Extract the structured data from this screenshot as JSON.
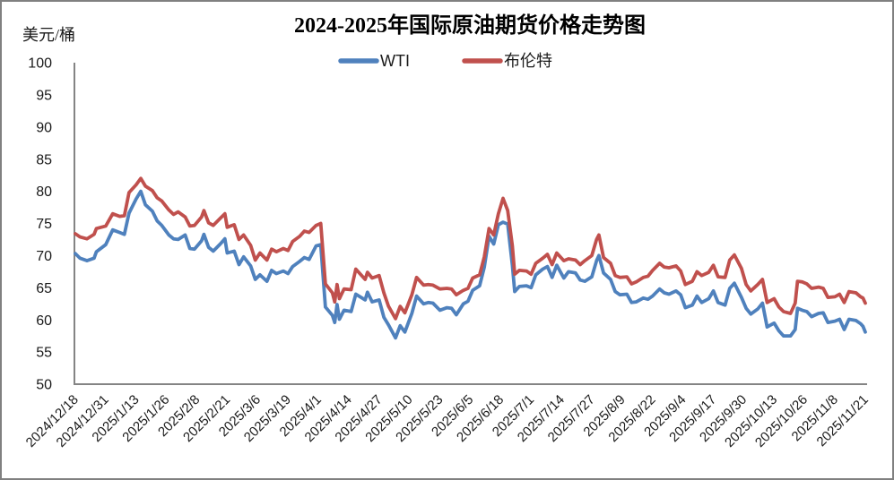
{
  "window": {
    "background": "#ffffff",
    "border_color": "#808080"
  },
  "chart_data": {
    "type": "line",
    "title": "2024-2025年国际原油期货价格走势图",
    "unit_label": "美元/桶",
    "xlabel": "",
    "ylabel": "美元/桶",
    "ylim": [
      50,
      100
    ],
    "y_ticks": [
      100,
      95,
      90,
      85,
      80,
      75,
      70,
      65,
      60,
      55,
      50
    ],
    "grid": false,
    "legend_position": "top-center",
    "axis_color": "#848484",
    "x_range": [
      "2024/12/18",
      "2025/11/21"
    ],
    "x_tick_labels": [
      "2024/12/18",
      "2024/12/31",
      "2025/1/13",
      "2025/1/26",
      "2025/2/8",
      "2025/2/21",
      "2025/3/6",
      "2025/3/19",
      "2025/4/1",
      "2025/4/14",
      "2025/4/27",
      "2025/5/10",
      "2025/5/23",
      "2025/6/5",
      "2025/6/18",
      "2025/7/1",
      "2025/7/14",
      "2025/7/27",
      "2025/8/9",
      "2025/8/22",
      "2025/9/4",
      "2025/9/17",
      "2025/9/30",
      "2025/10/13",
      "2025/10/26",
      "2025/11/8",
      "2025/11/21"
    ],
    "dates": [
      "2024/12/18",
      "2024/12/20",
      "2024/12/23",
      "2024/12/26",
      "2024/12/27",
      "2024/12/31",
      "2025/1/3",
      "2025/1/6",
      "2025/1/8",
      "2025/1/10",
      "2025/1/13",
      "2025/1/15",
      "2025/1/17",
      "2025/1/20",
      "2025/1/22",
      "2025/1/24",
      "2025/1/27",
      "2025/1/29",
      "2025/1/31",
      "2025/2/3",
      "2025/2/5",
      "2025/2/7",
      "2025/2/10",
      "2025/2/11",
      "2025/2/13",
      "2025/2/15",
      "2025/2/18",
      "2025/2/20",
      "2025/2/21",
      "2025/2/24",
      "2025/2/26",
      "2025/2/28",
      "2025/3/3",
      "2025/3/5",
      "2025/3/7",
      "2025/3/10",
      "2025/3/12",
      "2025/3/14",
      "2025/3/17",
      "2025/3/19",
      "2025/3/21",
      "2025/3/24",
      "2025/3/26",
      "2025/3/28",
      "2025/3/31",
      "2025/4/2",
      "2025/4/4",
      "2025/4/7",
      "2025/4/8",
      "2025/4/9",
      "2025/4/10",
      "2025/4/12",
      "2025/4/15",
      "2025/4/17",
      "2025/4/21",
      "2025/4/22",
      "2025/4/24",
      "2025/4/27",
      "2025/4/29",
      "2025/5/1",
      "2025/5/4",
      "2025/5/6",
      "2025/5/8",
      "2025/5/11",
      "2025/5/13",
      "2025/5/16",
      "2025/5/18",
      "2025/5/20",
      "2025/5/23",
      "2025/5/26",
      "2025/5/28",
      "2025/5/30",
      "2025/6/2",
      "2025/6/4",
      "2025/6/6",
      "2025/6/9",
      "2025/6/11",
      "2025/6/13",
      "2025/6/15",
      "2025/6/17",
      "2025/6/19",
      "2025/6/21",
      "2025/6/23",
      "2025/6/24",
      "2025/6/26",
      "2025/6/29",
      "2025/7/1",
      "2025/7/3",
      "2025/7/6",
      "2025/7/8",
      "2025/7/10",
      "2025/7/12",
      "2025/7/15",
      "2025/7/17",
      "2025/7/20",
      "2025/7/22",
      "2025/7/24",
      "2025/7/27",
      "2025/7/29",
      "2025/7/30",
      "2025/8/1",
      "2025/8/4",
      "2025/8/6",
      "2025/8/8",
      "2025/8/11",
      "2025/8/13",
      "2025/8/15",
      "2025/8/18",
      "2025/8/20",
      "2025/8/22",
      "2025/8/25",
      "2025/8/27",
      "2025/8/29",
      "2025/9/1",
      "2025/9/3",
      "2025/9/5",
      "2025/9/8",
      "2025/9/10",
      "2025/9/12",
      "2025/9/15",
      "2025/9/17",
      "2025/9/19",
      "2025/9/22",
      "2025/9/24",
      "2025/9/26",
      "2025/9/29",
      "2025/10/1",
      "2025/10/3",
      "2025/10/6",
      "2025/10/8",
      "2025/10/10",
      "2025/10/13",
      "2025/10/15",
      "2025/10/17",
      "2025/10/20",
      "2025/10/22",
      "2025/10/23",
      "2025/10/25",
      "2025/10/27",
      "2025/10/29",
      "2025/11/1",
      "2025/11/3",
      "2025/11/5",
      "2025/11/8",
      "2025/11/10",
      "2025/11/12",
      "2025/11/14",
      "2025/11/17",
      "2025/11/19",
      "2025/11/20",
      "2025/11/21"
    ],
    "series": [
      {
        "name": "WTI",
        "color": "#4F81BD",
        "values": [
          70.3,
          69.6,
          69.2,
          69.6,
          70.6,
          71.7,
          74.0,
          73.6,
          73.3,
          76.6,
          78.8,
          80.0,
          77.9,
          76.9,
          75.4,
          74.7,
          73.2,
          72.6,
          72.5,
          73.2,
          71.1,
          71.0,
          72.3,
          73.3,
          71.3,
          70.7,
          71.8,
          72.6,
          70.4,
          70.7,
          68.6,
          69.8,
          68.4,
          66.3,
          67.0,
          66.0,
          67.7,
          67.2,
          67.6,
          67.2,
          68.3,
          69.1,
          69.7,
          69.4,
          71.5,
          71.7,
          62.0,
          60.7,
          59.6,
          62.4,
          60.1,
          61.5,
          61.3,
          64.0,
          63.1,
          64.3,
          62.8,
          63.1,
          60.4,
          59.2,
          57.2,
          59.1,
          58.1,
          61.0,
          63.7,
          62.5,
          62.7,
          62.6,
          61.5,
          61.9,
          61.8,
          60.8,
          62.5,
          62.9,
          64.6,
          65.3,
          68.2,
          73.0,
          71.8,
          74.8,
          75.2,
          74.9,
          68.5,
          64.4,
          65.2,
          65.3,
          65.0,
          67.0,
          67.9,
          68.3,
          66.6,
          68.5,
          66.5,
          67.5,
          67.3,
          66.2,
          66.0,
          66.7,
          69.2,
          70.0,
          67.3,
          66.3,
          64.4,
          63.9,
          64.0,
          62.7,
          62.8,
          63.4,
          63.2,
          63.7,
          64.8,
          64.2,
          64.0,
          64.5,
          63.9,
          61.9,
          62.3,
          63.7,
          62.7,
          63.3,
          64.5,
          62.7,
          62.3,
          64.9,
          65.7,
          63.5,
          61.8,
          60.9,
          61.7,
          62.6,
          58.9,
          59.5,
          58.3,
          57.5,
          57.5,
          58.5,
          61.8,
          61.5,
          61.3,
          60.5,
          61.0,
          61.1,
          59.6,
          59.8,
          60.1,
          58.5,
          60.1,
          59.9,
          59.4,
          59.0,
          58.1
        ]
      },
      {
        "name": "布伦特",
        "color": "#C0504D",
        "values": [
          73.4,
          72.9,
          72.6,
          73.3,
          74.2,
          74.6,
          76.5,
          76.1,
          76.2,
          79.8,
          81.0,
          82.0,
          80.8,
          80.1,
          79.0,
          78.5,
          77.1,
          76.4,
          76.8,
          76.0,
          74.6,
          74.7,
          76.0,
          77.0,
          75.1,
          74.7,
          75.8,
          76.5,
          74.4,
          74.8,
          72.5,
          73.2,
          71.6,
          69.3,
          70.4,
          69.3,
          71.0,
          70.6,
          71.1,
          70.8,
          72.2,
          73.0,
          73.8,
          73.6,
          74.7,
          75.0,
          65.6,
          64.2,
          62.8,
          65.5,
          63.3,
          64.8,
          64.7,
          67.9,
          66.3,
          67.4,
          66.5,
          66.9,
          64.2,
          62.1,
          60.2,
          62.1,
          61.1,
          63.9,
          66.6,
          65.4,
          65.5,
          65.4,
          64.8,
          64.9,
          64.8,
          63.9,
          64.6,
          64.9,
          66.5,
          67.0,
          69.8,
          74.2,
          73.2,
          76.5,
          78.9,
          77.0,
          71.5,
          67.1,
          67.7,
          67.6,
          67.1,
          68.8,
          69.6,
          70.2,
          68.6,
          70.4,
          69.2,
          69.5,
          69.3,
          68.6,
          69.2,
          70.0,
          72.5,
          73.2,
          69.7,
          68.8,
          66.9,
          66.6,
          66.7,
          65.6,
          65.9,
          66.6,
          66.8,
          67.7,
          68.8,
          68.2,
          68.1,
          68.4,
          67.6,
          65.5,
          66.0,
          67.5,
          66.9,
          67.4,
          68.5,
          66.7,
          66.6,
          69.3,
          70.1,
          68.0,
          65.5,
          64.5,
          65.5,
          66.3,
          62.7,
          63.3,
          62.0,
          61.3,
          61.0,
          62.6,
          66.0,
          65.9,
          65.6,
          64.9,
          65.1,
          64.9,
          63.5,
          63.6,
          64.0,
          62.7,
          64.4,
          64.2,
          63.6,
          63.4,
          62.6
        ]
      }
    ]
  }
}
